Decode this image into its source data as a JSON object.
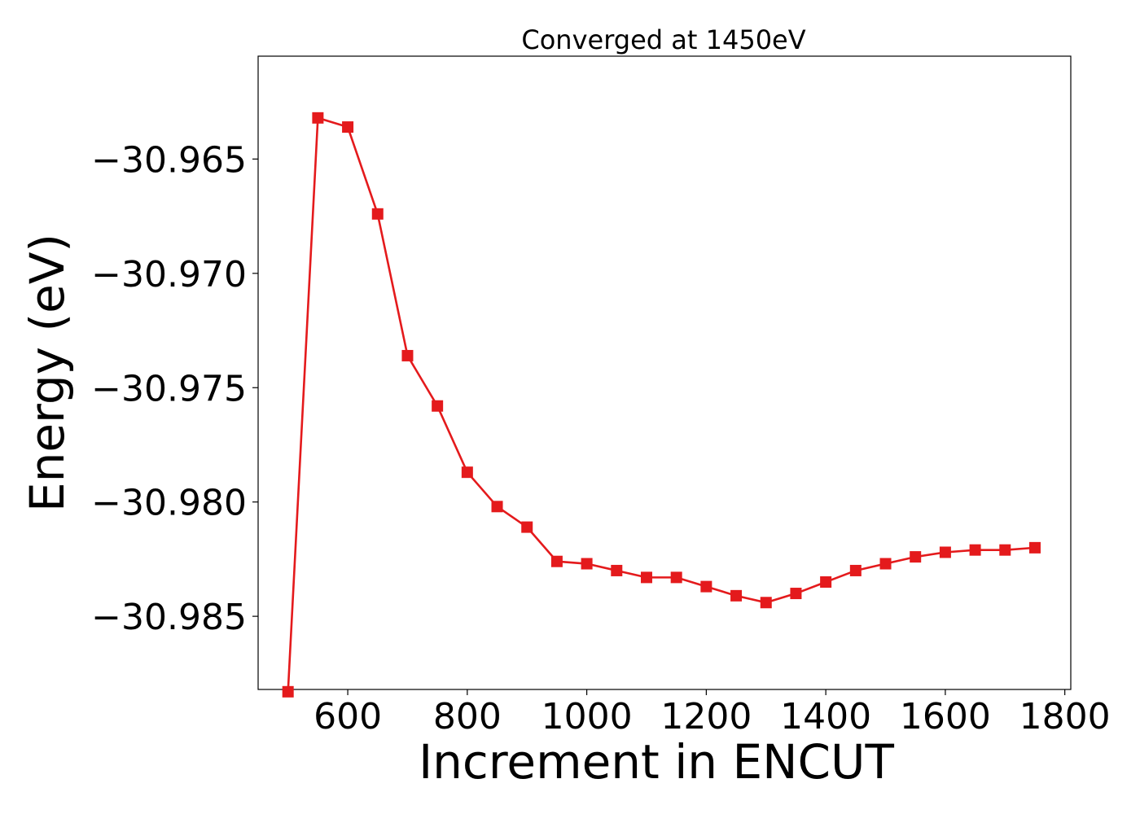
{
  "chart_data": {
    "type": "line",
    "title": "Converged at 1450eV",
    "xlabel": "Increment in ENCUT",
    "ylabel": "Energy (eV)",
    "xlim": [
      450,
      1810
    ],
    "ylim": [
      -30.9882,
      -30.9605
    ],
    "x_ticks": [
      600,
      800,
      1000,
      1200,
      1400,
      1600,
      1800
    ],
    "x_tick_labels": [
      "600",
      "800",
      "1000",
      "1200",
      "1400",
      "1600",
      "1800"
    ],
    "y_ticks": [
      -30.965,
      -30.97,
      -30.975,
      -30.98,
      -30.985
    ],
    "y_tick_labels": [
      "−30.965",
      "−30.970",
      "−30.975",
      "−30.980",
      "−30.985"
    ],
    "grid": false,
    "series": [
      {
        "color": "#e41a1c",
        "marker": "square",
        "x": [
          500,
          550,
          600,
          650,
          700,
          750,
          800,
          850,
          900,
          950,
          1000,
          1050,
          1100,
          1150,
          1200,
          1250,
          1300,
          1350,
          1400,
          1450,
          1500,
          1550,
          1600,
          1650,
          1700,
          1750
        ],
        "y": [
          -30.9883,
          -30.9632,
          -30.9636,
          -30.9674,
          -30.9736,
          -30.9758,
          -30.9787,
          -30.9802,
          -30.9811,
          -30.9826,
          -30.9827,
          -30.983,
          -30.9833,
          -30.9833,
          -30.9837,
          -30.9841,
          -30.9844,
          -30.984,
          -30.9835,
          -30.983,
          -30.9827,
          -30.9824,
          -30.9822,
          -30.9821,
          -30.9821,
          -30.982
        ]
      }
    ]
  }
}
